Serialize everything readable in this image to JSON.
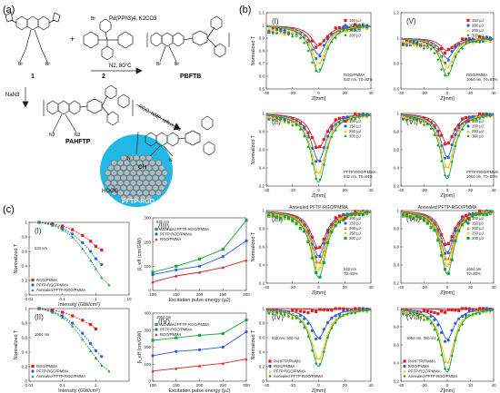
{
  "panel_labels": {
    "a": "(a)",
    "b": "(b)",
    "c": "(c)"
  },
  "colors": {
    "red": "#e41a1c",
    "blue": "#2c5fd6",
    "yellow": "#f2c200",
    "green": "#18a538",
    "teal_circle": "#22b8e6",
    "graphene": "#9aa3a8"
  },
  "scheme": {
    "reagents_top": "Pd(PPh3)4, K2CO3",
    "reagents_bottom": "N2, 80°C",
    "plus": "+",
    "label_1": "1",
    "label_2": "2",
    "label_pbftb": "PBFTB",
    "label_pahftp": "PAHFTP",
    "nan3": "NaN3",
    "rgo_conditions": "RGO, NMP, reflux, 3d",
    "label_pftp_rgo": "PFTP-RGO",
    "br": "Br",
    "n3": "N3",
    "oh": "OH",
    "hooc": "HOOC",
    "n": "N"
  },
  "chart_data": [
    {
      "id": "b-I",
      "type": "line",
      "roman": "(I)",
      "xlabel": "Z[mm]",
      "ylabel": "Normalized T",
      "xlim": [
        -40,
        40
      ],
      "ylim": [
        0.5,
        1.1
      ],
      "xticks": [
        -40,
        -20,
        0,
        20,
        40
      ],
      "yticks": [
        0.5,
        0.6,
        0.7,
        0.8,
        0.9,
        1.0,
        1.1
      ],
      "legend": [
        "150 μJ",
        "200 μJ",
        "250 μJ",
        "300 μJ"
      ],
      "annotation": "RGO/PMMA\n532 nm, T0=82%",
      "series": [
        {
          "name": "150 μJ",
          "min": 0.84
        },
        {
          "name": "200 μJ",
          "min": 0.77
        },
        {
          "name": "250 μJ",
          "min": 0.7
        },
        {
          "name": "300 μJ",
          "min": 0.63
        }
      ]
    },
    {
      "id": "b-V",
      "type": "line",
      "roman": "(V)",
      "xlabel": "Z[mm]",
      "ylabel": "",
      "xlim": [
        -40,
        40
      ],
      "ylim": [
        0.6,
        1.2
      ],
      "xticks": [
        -40,
        -20,
        0,
        20,
        40
      ],
      "yticks": [
        0.6,
        0.8,
        1.0,
        1.2
      ],
      "legend": [
        "150 μJ",
        "200 μJ",
        "250 μJ",
        "300 μJ"
      ],
      "annotation": "RGO/PMMA\n1064 nm, T0=81%",
      "series": [
        {
          "name": "150 μJ",
          "min": 0.9
        },
        {
          "name": "200 μJ",
          "min": 0.84
        },
        {
          "name": "250 μJ",
          "min": 0.77
        },
        {
          "name": "300 μJ",
          "min": 0.7
        }
      ]
    },
    {
      "id": "b-II",
      "type": "line",
      "roman": "(II)",
      "xlabel": "Z[mm]",
      "ylabel": "Normalized T",
      "xlim": [
        -40,
        40
      ],
      "ylim": [
        0.2,
        1.0
      ],
      "xticks": [
        -40,
        -20,
        0,
        20,
        40
      ],
      "yticks": [
        0.2,
        0.4,
        0.6,
        0.8,
        1.0
      ],
      "legend": [
        "100 μJ",
        "150 μJ",
        "250 μJ",
        "300 μJ"
      ],
      "annotation": "PFTP-RGO/PMMA\n532 nm, T0=84%",
      "series": [
        {
          "name": "100 μJ",
          "min": 0.62
        },
        {
          "name": "150 μJ",
          "min": 0.48
        },
        {
          "name": "250 μJ",
          "min": 0.34
        },
        {
          "name": "300 μJ",
          "min": 0.24
        }
      ]
    },
    {
      "id": "b-VI",
      "type": "line",
      "roman": "(VI)",
      "xlabel": "Z[mm]",
      "ylabel": "",
      "xlim": [
        -40,
        40
      ],
      "ylim": [
        0.2,
        1.0
      ],
      "xticks": [
        -40,
        -20,
        0,
        20,
        40
      ],
      "yticks": [
        0.2,
        0.4,
        0.6,
        0.8,
        1.0
      ],
      "legend": [
        "100 μJ",
        "200 μJ",
        "250 μJ",
        "300 μJ"
      ],
      "annotation": "PFTP-RGO/PMMA\n1064 nm, T0=80%",
      "series": [
        {
          "name": "100 μJ",
          "min": 0.66
        },
        {
          "name": "200 μJ",
          "min": 0.52
        },
        {
          "name": "250 μJ",
          "min": 0.4
        },
        {
          "name": "300 μJ",
          "min": 0.28
        }
      ]
    },
    {
      "id": "b-III",
      "type": "line",
      "roman": "(III)",
      "title": "Annealed PFTP-RGO/PMMA",
      "xlabel": "Z[mm]",
      "ylabel": "Normalized T",
      "xlim": [
        -40,
        40
      ],
      "ylim": [
        0.2,
        1.0
      ],
      "xticks": [
        -40,
        -20,
        0,
        20,
        40
      ],
      "yticks": [
        0.2,
        0.4,
        0.6,
        0.8,
        1.0
      ],
      "legend": [
        "100 μJ",
        "150 μJ",
        "200 μJ",
        "250 μJ",
        "300 μJ"
      ],
      "annotation": "532 nm\nT0=83%",
      "series": [
        {
          "name": "100 μJ",
          "min": 0.58
        },
        {
          "name": "150 μJ",
          "min": 0.5
        },
        {
          "name": "200 μJ",
          "min": 0.42
        },
        {
          "name": "250 μJ",
          "min": 0.34
        },
        {
          "name": "300 μJ",
          "min": 0.26
        }
      ]
    },
    {
      "id": "b-VII",
      "type": "line",
      "roman": "(VII)",
      "title": "Annealed PFTP-RGO/PMMA",
      "xlabel": "Z[mm]",
      "ylabel": "",
      "xlim": [
        -40,
        40
      ],
      "ylim": [
        0.2,
        1.0
      ],
      "xticks": [
        -40,
        -20,
        0,
        20,
        40
      ],
      "yticks": [
        0.2,
        0.4,
        0.6,
        0.8,
        1.0
      ],
      "legend": [
        "100 μJ",
        "150 μJ",
        "200 μJ",
        "250 μJ",
        "300 μJ"
      ],
      "annotation": "1064 nm\nT0=80%",
      "series": [
        {
          "name": "100 μJ",
          "min": 0.62
        },
        {
          "name": "150 μJ",
          "min": 0.54
        },
        {
          "name": "200 μJ",
          "min": 0.46
        },
        {
          "name": "250 μJ",
          "min": 0.38
        },
        {
          "name": "300 μJ",
          "min": 0.3
        }
      ]
    },
    {
      "id": "b-IV",
      "type": "line",
      "roman": "(IV)",
      "xlabel": "Z[mm]",
      "ylabel": "Normalized T",
      "xlim": [
        -40,
        40
      ],
      "ylim": [
        0.0,
        1.0
      ],
      "xticks": [
        -40,
        -20,
        0,
        20,
        40
      ],
      "yticks": [
        0.0,
        0.2,
        0.4,
        0.6,
        0.8,
        1.0
      ],
      "legend": [
        "PAHFTP/PMMA",
        "RGO/PMMA",
        "PFTP-RGO/PMMA",
        "Annealed PFTP-RGO/PMMA"
      ],
      "annotation": "532 nm, 300 mJ",
      "series": [
        {
          "name": "PAHFTP/PMMA",
          "min": 0.98
        },
        {
          "name": "RGO/PMMA",
          "min": 0.6
        },
        {
          "name": "PFTP-RGO/PMMA",
          "min": 0.3
        },
        {
          "name": "Annealed PFTP-RGO/PMMA",
          "min": 0.2
        }
      ]
    },
    {
      "id": "b-VIII",
      "type": "line",
      "roman": "(VIII)",
      "xlabel": "Z[mm]",
      "ylabel": "",
      "xlim": [
        -40,
        40
      ],
      "ylim": [
        0.2,
        1.0
      ],
      "xticks": [
        -40,
        -20,
        0,
        20,
        40
      ],
      "yticks": [
        0.2,
        0.4,
        0.6,
        0.8,
        1.0
      ],
      "legend": [
        "PAHFTP/PMMA",
        "RGO/PMMA",
        "PFTP-RGO/PMMA",
        "Annealed PFTP-RGO/PMMA"
      ],
      "annotation": "1064 nm, 300 mJ",
      "series": [
        {
          "name": "PAHFTP/PMMA",
          "min": 0.98
        },
        {
          "name": "RGO/PMMA",
          "min": 0.66
        },
        {
          "name": "PFTP-RGO/PMMA",
          "min": 0.4
        },
        {
          "name": "Annealed PFTP-RGO/PMMA",
          "min": 0.3
        }
      ]
    },
    {
      "id": "c-I",
      "type": "scatter",
      "roman": "(I)",
      "xlabel": "Intensity (GW/cm²)",
      "ylabel": "Normalized T",
      "xscale": "log",
      "xlim": [
        0.01,
        10
      ],
      "ylim": [
        0.0,
        1.0
      ],
      "xticks": [
        "0.01",
        "0.1",
        "1",
        "10"
      ],
      "yticks": [
        0.0,
        0.2,
        0.4,
        0.6,
        0.8,
        1.0
      ],
      "legend": [
        "RGO/PMMA",
        "PFTP-RGO/PMMA",
        "Annealed PFTP-RGO/PMMA"
      ],
      "annotation": "532 nm",
      "series": [
        {
          "name": "RGO/PMMA",
          "x": [
            0.02,
            0.05,
            0.1,
            0.2,
            0.4,
            0.7,
            1.0,
            1.5
          ],
          "y": [
            1.0,
            0.98,
            0.95,
            0.9,
            0.82,
            0.74,
            0.67,
            0.62
          ]
        },
        {
          "name": "PFTP-RGO/PMMA",
          "x": [
            0.02,
            0.05,
            0.1,
            0.2,
            0.4,
            0.7,
            1.0,
            1.5
          ],
          "y": [
            1.0,
            0.97,
            0.92,
            0.84,
            0.72,
            0.6,
            0.5,
            0.42
          ]
        },
        {
          "name": "Annealed PFTP-RGO/PMMA",
          "x": [
            0.02,
            0.05,
            0.1,
            0.2,
            0.4,
            0.7,
            1.0,
            1.5,
            2.5
          ],
          "y": [
            1.0,
            0.96,
            0.9,
            0.8,
            0.64,
            0.48,
            0.36,
            0.24,
            0.14
          ]
        }
      ]
    },
    {
      "id": "c-II",
      "type": "scatter",
      "roman": "(II)",
      "xlabel": "Intensity (GW/cm²)",
      "ylabel": "Normalized T",
      "xscale": "log",
      "xlim": [
        0.01,
        10
      ],
      "ylim": [
        0.0,
        1.0
      ],
      "xticks": [
        "0.01",
        "0.1",
        "1"
      ],
      "yticks": [
        0.0,
        0.2,
        0.4,
        0.6,
        0.8,
        1.0
      ],
      "legend": [
        "RGO/PMMA",
        "PFTP-RGO/PMMA",
        "Annealed PFTP-RGO/PMMA"
      ],
      "annotation": "1064 nm",
      "series": [
        {
          "name": "RGO/PMMA",
          "x": [
            0.02,
            0.05,
            0.1,
            0.2,
            0.4,
            0.7,
            1.0
          ],
          "y": [
            1.0,
            0.98,
            0.95,
            0.9,
            0.84,
            0.78,
            0.72
          ]
        },
        {
          "name": "PFTP-RGO/PMMA",
          "x": [
            0.02,
            0.05,
            0.1,
            0.2,
            0.4,
            0.7,
            1.0,
            1.5
          ],
          "y": [
            1.0,
            0.96,
            0.9,
            0.8,
            0.66,
            0.52,
            0.42,
            0.34
          ]
        },
        {
          "name": "Annealed PFTP-RGO/PMMA",
          "x": [
            0.02,
            0.05,
            0.1,
            0.2,
            0.4,
            0.7,
            1.0,
            1.5,
            2.5
          ],
          "y": [
            1.0,
            0.95,
            0.88,
            0.76,
            0.58,
            0.42,
            0.32,
            0.22,
            0.14
          ]
        }
      ]
    },
    {
      "id": "c-III",
      "type": "line",
      "roman": "(III)",
      "xlabel": "Excitation pulse energy (μJ)",
      "ylabel": "β_eff (cm/GW)",
      "xlim": [
        100,
        300
      ],
      "ylim": [
        0,
        300
      ],
      "xticks": [
        100,
        150,
        200,
        250,
        300
      ],
      "yticks": [
        0,
        100,
        200,
        300
      ],
      "legend": [
        "Annealed PFTP-RGO/PMMA",
        "PFTP-RGO/PMMA",
        "RGO/PMMA"
      ],
      "annotation": "532 nm",
      "x": [
        100,
        150,
        200,
        250,
        300
      ],
      "series": [
        {
          "name": "Annealed PFTP-RGO/PMMA",
          "values": [
            75,
            100,
            130,
            170,
            290
          ]
        },
        {
          "name": "PFTP-RGO/PMMA",
          "values": [
            65,
            85,
            100,
            140,
            205
          ]
        },
        {
          "name": "RGO/PMMA",
          "values": [
            35,
            60,
            75,
            95,
            125
          ]
        }
      ]
    },
    {
      "id": "c-IV",
      "type": "line",
      "roman": "(IV)",
      "xlabel": "Excitation pulse energy (μJ)",
      "ylabel": "β_eff (cm/GW)",
      "xlim": [
        100,
        300
      ],
      "ylim": [
        0,
        400
      ],
      "xticks": [
        100,
        150,
        200,
        250,
        300
      ],
      "yticks": [
        0,
        100,
        200,
        300,
        400
      ],
      "legend": [
        "Annealed PFTP-RGO/PMMA",
        "PFTP-RGO/PMMA",
        "RGO/PMMA"
      ],
      "annotation": "1064 nm",
      "x": [
        100,
        150,
        200,
        250,
        300
      ],
      "series": [
        {
          "name": "Annealed PFTP-RGO/PMMA",
          "values": [
            240,
            255,
            270,
            280,
            360
          ]
        },
        {
          "name": "PFTP-RGO/PMMA",
          "values": [
            150,
            175,
            185,
            200,
            290
          ]
        },
        {
          "name": "RGO/PMMA",
          "values": [
            60,
            75,
            90,
            105,
            130
          ]
        }
      ]
    }
  ]
}
